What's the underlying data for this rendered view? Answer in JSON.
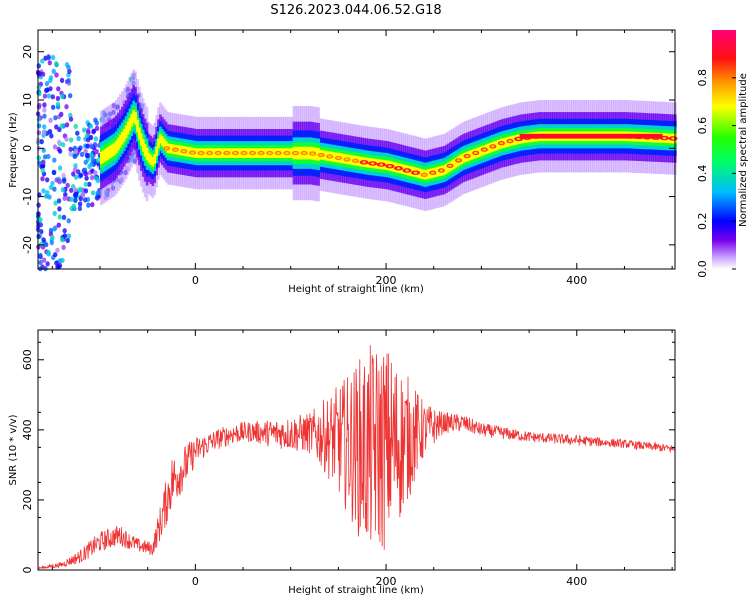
{
  "figure": {
    "title": "S126.2023.044.06.52.G18"
  },
  "chart_data": [
    {
      "type": "heatmap",
      "xlabel": "Height of straight line (km)",
      "ylabel": "Frequency (Hz)",
      "xlim": [
        -165,
        503
      ],
      "ylim": [
        -25,
        24.5
      ],
      "xticks": [
        0,
        200,
        400
      ],
      "yticks": [
        -20,
        -10,
        0,
        10,
        20
      ],
      "colorbar": {
        "label": "Normalized spectral amplitude",
        "range": [
          0,
          1
        ],
        "ticks": [
          "0.0",
          "0.2",
          "0.4",
          "0.6",
          "0.8"
        ],
        "colormap": "white-purple-blue-cyan-green-yellow-orange-red-magenta"
      },
      "ridge": {
        "height_km": [
          -140,
          -120,
          -100,
          -85,
          -75,
          -70,
          -65,
          -60,
          -55,
          -50,
          -45,
          -40,
          -38,
          -30,
          0,
          50,
          100,
          120,
          150,
          180,
          200,
          220,
          240,
          260,
          280,
          300,
          320,
          340,
          360,
          400,
          450,
          503
        ],
        "frequency_hz": [
          -5,
          -4,
          -2,
          0,
          3,
          5,
          7,
          3,
          0,
          -2,
          -3,
          1,
          2,
          0,
          -1,
          -1,
          -1,
          -1,
          -2,
          -3,
          -3.5,
          -4.5,
          -5.5,
          -4.5,
          -2,
          -0.5,
          1,
          2,
          2.5,
          2.5,
          2.5,
          2.0
        ]
      }
    },
    {
      "type": "line",
      "xlabel": "Height of straight line (km)",
      "ylabel": "SNR (10 * v/v)",
      "xlim": [
        -165,
        503
      ],
      "ylim": [
        0,
        685
      ],
      "xticks": [
        0,
        200,
        400
      ],
      "yticks": [
        0,
        200,
        400,
        600
      ],
      "line_color": "#ee3333",
      "series": [
        {
          "height_km": [
            -165,
            -140,
            -120,
            -100,
            -80,
            -60,
            -45,
            -35,
            -25,
            -10,
            0,
            20,
            40,
            60,
            80,
            100,
            120,
            140,
            160,
            180,
            200,
            220,
            240,
            260,
            280,
            300,
            350,
            400,
            450,
            503
          ],
          "snr_mean": [
            5,
            15,
            40,
            80,
            100,
            70,
            60,
            150,
            250,
            300,
            340,
            370,
            390,
            395,
            390,
            390,
            390,
            380,
            360,
            340,
            350,
            370,
            400,
            420,
            420,
            400,
            380,
            370,
            360,
            345
          ],
          "snr_spread": [
            2,
            8,
            20,
            30,
            30,
            20,
            20,
            60,
            80,
            60,
            40,
            30,
            30,
            30,
            40,
            50,
            60,
            120,
            200,
            300,
            300,
            200,
            80,
            30,
            25,
            20,
            15,
            15,
            12,
            12
          ]
        }
      ]
    }
  ]
}
